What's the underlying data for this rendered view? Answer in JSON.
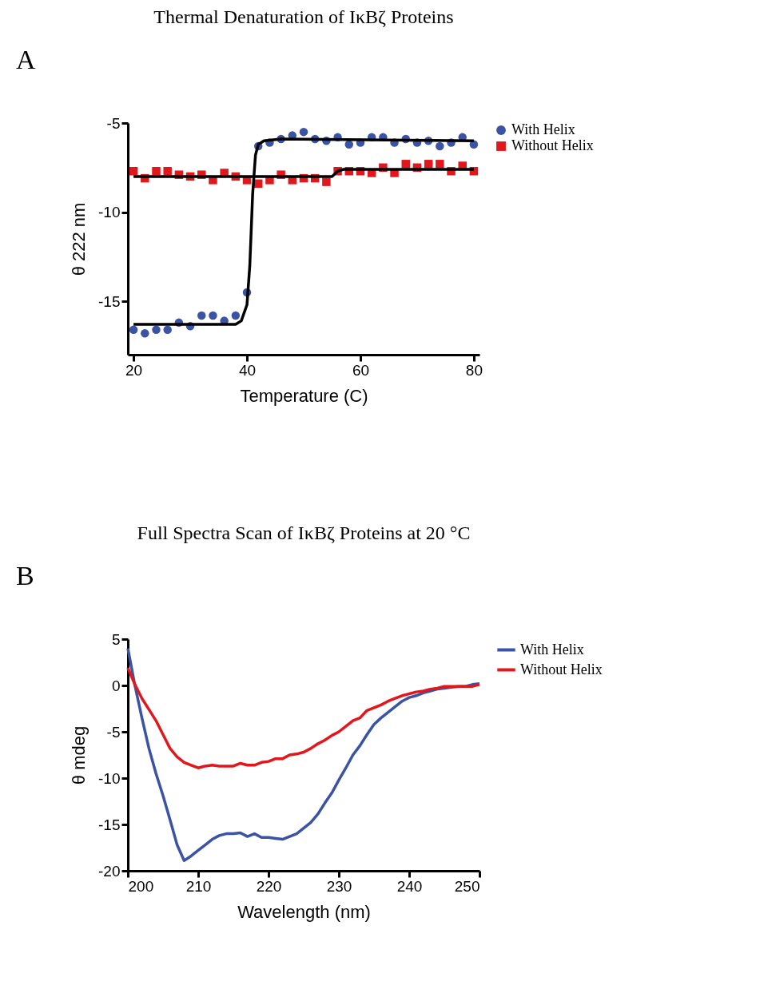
{
  "chart_data": [
    {
      "type": "scatter",
      "title": "Thermal Denaturation of IκBζ Proteins",
      "xlabel": "Temperature (C)",
      "ylabel": "θ 222 nm",
      "annotations": [
        "A"
      ],
      "xlim": [
        19,
        81
      ],
      "ylim": [
        -18,
        -5
      ],
      "xticks": [
        20,
        40,
        60,
        80
      ],
      "yticks": [
        -5,
        -10,
        -15
      ],
      "grid": false,
      "legend": "right",
      "series": [
        {
          "name": "With Helix",
          "type": "scatter",
          "marker": "circle",
          "color": "#3a53a4",
          "x": [
            20,
            22,
            24,
            26,
            28,
            30,
            32,
            34,
            36,
            38,
            40,
            42,
            44,
            46,
            48,
            50,
            52,
            54,
            56,
            58,
            60,
            62,
            64,
            66,
            68,
            70,
            72,
            74,
            76,
            78,
            80
          ],
          "values": [
            -16.6,
            -16.8,
            -16.6,
            -16.6,
            -16.2,
            -16.4,
            -15.8,
            -15.8,
            -16.1,
            -15.8,
            -14.5,
            -6.3,
            -6.1,
            -5.9,
            -5.7,
            -5.5,
            -5.9,
            -6.0,
            -5.8,
            -6.2,
            -6.1,
            -5.8,
            -5.8,
            -6.1,
            -5.9,
            -6.1,
            -6.0,
            -6.3,
            -6.1,
            -5.8,
            -6.2
          ]
        },
        {
          "name": "Without Helix",
          "type": "scatter",
          "marker": "square",
          "color": "#e3161b",
          "x": [
            20,
            22,
            24,
            26,
            28,
            30,
            32,
            34,
            36,
            38,
            40,
            42,
            44,
            46,
            48,
            50,
            52,
            54,
            56,
            58,
            60,
            62,
            64,
            66,
            68,
            70,
            72,
            74,
            76,
            78,
            80
          ],
          "values": [
            -7.7,
            -8.1,
            -7.7,
            -7.7,
            -7.9,
            -8.0,
            -7.9,
            -8.2,
            -7.8,
            -8.0,
            -8.2,
            -8.4,
            -8.2,
            -7.9,
            -8.2,
            -8.1,
            -8.1,
            -8.3,
            -7.7,
            -7.7,
            -7.7,
            -7.8,
            -7.5,
            -7.8,
            -7.3,
            -7.5,
            -7.3,
            -7.3,
            -7.7,
            -7.4,
            -7.7
          ]
        },
        {
          "type": "line",
          "color": "#000000",
          "x": [
            20,
            38,
            39,
            40,
            40.5,
            41,
            41.5,
            42,
            43,
            46,
            80
          ],
          "values": [
            -16.3,
            -16.3,
            -16.1,
            -15.2,
            -13,
            -9,
            -6.8,
            -6.2,
            -6.0,
            -5.9,
            -6.0
          ]
        },
        {
          "type": "line",
          "color": "#000000",
          "x": [
            20,
            55,
            56,
            57,
            80
          ],
          "values": [
            -8.0,
            -8.0,
            -7.7,
            -7.6,
            -7.6
          ]
        }
      ]
    },
    {
      "type": "line",
      "title": "Full Spectra Scan of IκBζ Proteins at 20 °C",
      "xlabel": "Wavelength (nm)",
      "ylabel": "θ mdeg",
      "annotations": [
        "B"
      ],
      "xlim": [
        200,
        250
      ],
      "ylim": [
        -20,
        5
      ],
      "xticks": [
        200,
        210,
        220,
        230,
        240,
        250
      ],
      "yticks": [
        5,
        0,
        -5,
        -10,
        -15,
        -20
      ],
      "grid": false,
      "legend": "right",
      "marker": "none",
      "line_style": "solid",
      "series": [
        {
          "name": "With Helix",
          "color": "#3a53a4",
          "x": [
            200,
            201,
            202,
            203,
            204,
            205,
            206,
            207,
            208,
            209,
            210,
            211,
            212,
            213,
            214,
            215,
            216,
            217,
            218,
            219,
            220,
            221,
            222,
            223,
            224,
            225,
            226,
            227,
            228,
            229,
            230,
            231,
            232,
            233,
            234,
            235,
            236,
            237,
            238,
            239,
            240,
            241,
            242,
            243,
            244,
            245,
            246,
            247,
            248,
            249,
            250
          ],
          "values": [
            4.0,
            0,
            -3.5,
            -6.8,
            -9.5,
            -11.9,
            -14.5,
            -17.2,
            -18.9,
            -18.4,
            -17.8,
            -17.2,
            -16.6,
            -16.2,
            -16.0,
            -16.0,
            -15.9,
            -16.3,
            -16.0,
            -16.4,
            -16.4,
            -16.5,
            -16.6,
            -16.3,
            -16.0,
            -15.4,
            -14.8,
            -13.9,
            -12.7,
            -11.6,
            -10.2,
            -8.9,
            -7.5,
            -6.5,
            -5.3,
            -4.2,
            -3.5,
            -2.9,
            -2.3,
            -1.7,
            -1.3,
            -1.1,
            -0.8,
            -0.6,
            -0.4,
            -0.3,
            -0.2,
            -0.1,
            -0.1,
            0.1,
            0.2
          ]
        },
        {
          "name": "Without Helix",
          "color": "#e3161b",
          "x": [
            200,
            201,
            202,
            203,
            204,
            205,
            206,
            207,
            208,
            209,
            210,
            211,
            212,
            213,
            214,
            215,
            216,
            217,
            218,
            219,
            220,
            221,
            222,
            223,
            224,
            225,
            226,
            227,
            228,
            229,
            230,
            231,
            232,
            233,
            234,
            235,
            236,
            237,
            238,
            239,
            240,
            241,
            242,
            243,
            244,
            245,
            246,
            247,
            248,
            249,
            250
          ],
          "values": [
            1.9,
            0.1,
            -1.4,
            -2.6,
            -3.8,
            -5.3,
            -6.8,
            -7.7,
            -8.3,
            -8.6,
            -8.9,
            -8.7,
            -8.6,
            -8.7,
            -8.7,
            -8.7,
            -8.4,
            -8.6,
            -8.6,
            -8.3,
            -8.2,
            -7.9,
            -7.9,
            -7.5,
            -7.4,
            -7.2,
            -6.8,
            -6.3,
            -5.9,
            -5.4,
            -5.0,
            -4.4,
            -3.8,
            -3.5,
            -2.7,
            -2.4,
            -2.1,
            -1.7,
            -1.4,
            -1.1,
            -0.9,
            -0.7,
            -0.6,
            -0.4,
            -0.3,
            -0.1,
            -0.1,
            -0.1,
            -0.1,
            -0.1,
            0.1
          ]
        }
      ]
    }
  ]
}
